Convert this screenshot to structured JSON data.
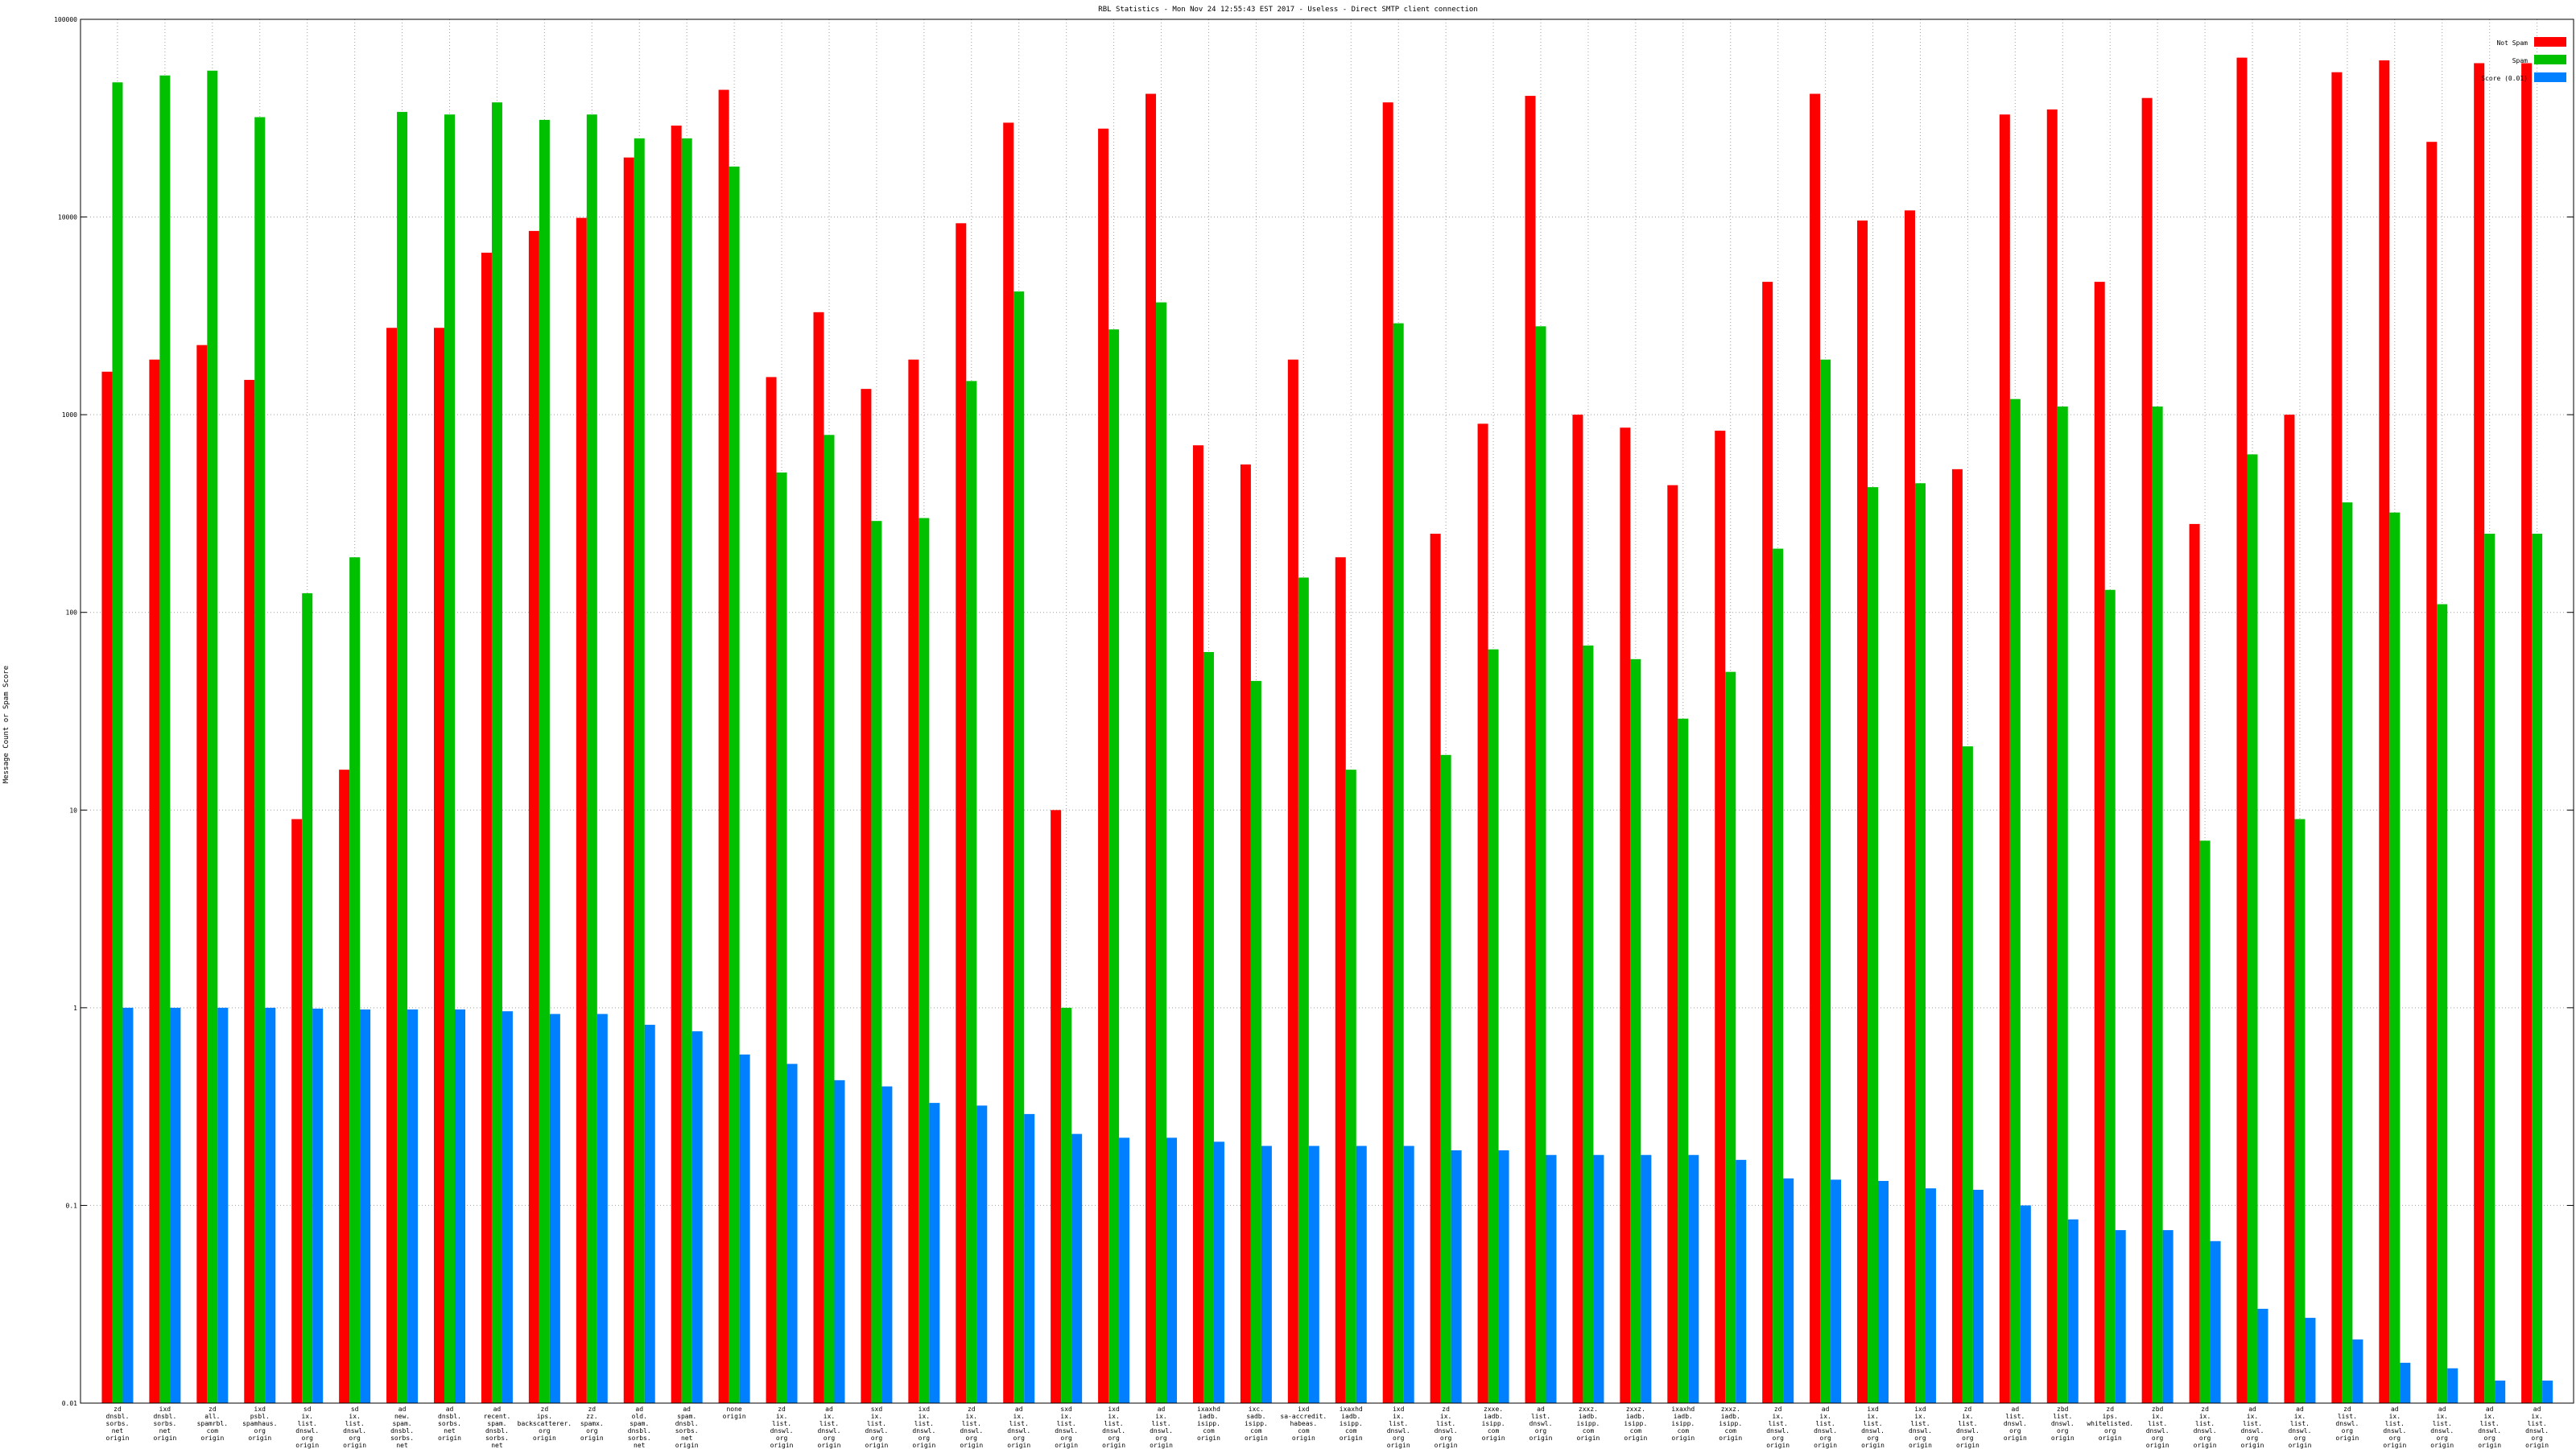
{
  "chart_data": {
    "type": "bar",
    "title": "RBL Statistics - Mon Nov 24 12:55:43 EST 2017 - Useless - Direct SMTP client connection",
    "ylabel": "Message Count or Spam Score",
    "xlabel": "",
    "yscale": "log",
    "ylim": [
      0.01,
      100000
    ],
    "yticks": [
      "0.01",
      "0.1",
      "1",
      "10",
      "100",
      "1000",
      "10000",
      "100000"
    ],
    "grid": true,
    "legend_position": "top-right",
    "colors": [
      "#ff0000",
      "#00c000",
      "#0080ff"
    ],
    "categories": [
      [
        "zd",
        "dnsbl.",
        "sorbs.",
        "net",
        "origin"
      ],
      [
        "ixd",
        "dnsbl.",
        "sorbs.",
        "net",
        "origin"
      ],
      [
        "zd",
        "all.",
        "spamrbl.",
        "com",
        "origin"
      ],
      [
        "ixd",
        "psbl.",
        "spamhaus.",
        "org",
        "origin"
      ],
      [
        "sd",
        "ix.",
        "list.",
        "dnswl.",
        "org",
        "origin"
      ],
      [
        "sd",
        "ix.",
        "list.",
        "dnswl.",
        "org",
        "origin"
      ],
      [
        "ad",
        "new.",
        "spam.",
        "dnsbl.",
        "sorbs.",
        "net",
        "origin"
      ],
      [
        "ad",
        "dnsbl.",
        "sorbs.",
        "net",
        "origin"
      ],
      [
        "ad",
        "recent.",
        "spam.",
        "dnsbl.",
        "sorbs.",
        "net",
        "origin"
      ],
      [
        "zd",
        "ips.",
        "backscatterer.",
        "org",
        "origin"
      ],
      [
        "zd",
        "zz.",
        "spamx.",
        "org",
        "origin"
      ],
      [
        "ad",
        "old.",
        "spam.",
        "dnsbl.",
        "sorbs.",
        "net",
        "origin"
      ],
      [
        "ad",
        "spam.",
        "dnsbl.",
        "sorbs.",
        "net",
        "origin"
      ],
      [
        "none",
        "origin"
      ],
      [
        "zd",
        "ix.",
        "list.",
        "dnswl.",
        "org",
        "origin"
      ],
      [
        "ad",
        "ix.",
        "list.",
        "dnswl.",
        "org",
        "origin"
      ],
      [
        "sxd",
        "ix.",
        "list.",
        "dnswl.",
        "org",
        "origin"
      ],
      [
        "ixd",
        "ix.",
        "list.",
        "dnswl.",
        "org",
        "origin"
      ],
      [
        "zd",
        "ix.",
        "list.",
        "dnswl.",
        "org",
        "origin"
      ],
      [
        "ad",
        "ix.",
        "list.",
        "dnswl.",
        "org",
        "origin"
      ],
      [
        "sxd",
        "ix.",
        "list.",
        "dnswl.",
        "org",
        "origin"
      ],
      [
        "ixd",
        "ix.",
        "list.",
        "dnswl.",
        "org",
        "origin"
      ],
      [
        "ad",
        "ix.",
        "list.",
        "dnswl.",
        "org",
        "origin"
      ],
      [
        "ixaxhd",
        "iadb.",
        "isipp.",
        "com",
        "origin"
      ],
      [
        "ixc.",
        "sadb.",
        "isipp.",
        "com",
        "origin"
      ],
      [
        "ixd",
        "sa-accredit.",
        "habeas.",
        "com",
        "origin"
      ],
      [
        "ixaxhd",
        "iadb.",
        "isipp.",
        "com",
        "origin"
      ],
      [
        "ixd",
        "ix.",
        "list.",
        "dnswl.",
        "org",
        "origin"
      ],
      [
        "zd",
        "ix.",
        "list.",
        "dnswl.",
        "org",
        "origin"
      ],
      [
        "zxxe.",
        "iadb.",
        "isipp.",
        "com",
        "origin"
      ],
      [
        "ad",
        "list.",
        "dnswl.",
        "org",
        "origin"
      ],
      [
        "zxxz.",
        "iadb.",
        "isipp.",
        "com",
        "origin"
      ],
      [
        "zxxz.",
        "iadb.",
        "isipp.",
        "com",
        "origin"
      ],
      [
        "ixaxhd",
        "iadb.",
        "isipp.",
        "com",
        "origin"
      ],
      [
        "zxxz.",
        "iadb.",
        "isipp.",
        "com",
        "origin"
      ],
      [
        "zd",
        "ix.",
        "list.",
        "dnswl.",
        "org",
        "origin"
      ],
      [
        "ad",
        "ix.",
        "list.",
        "dnswl.",
        "org",
        "origin"
      ],
      [
        "ixd",
        "ix.",
        "list.",
        "dnswl.",
        "org",
        "origin"
      ],
      [
        "ixd",
        "ix.",
        "list.",
        "dnswl.",
        "org",
        "origin"
      ],
      [
        "zd",
        "ix.",
        "list.",
        "dnswl.",
        "org",
        "origin"
      ],
      [
        "ad",
        "list.",
        "dnswl.",
        "org",
        "origin"
      ],
      [
        "zbd",
        "list.",
        "dnswl.",
        "org",
        "origin"
      ],
      [
        "zd",
        "ips.",
        "whitelisted.",
        "org",
        "origin"
      ],
      [
        "zbd",
        "ix.",
        "list.",
        "dnswl.",
        "org",
        "origin"
      ],
      [
        "zd",
        "ix.",
        "list.",
        "dnswl.",
        "org",
        "origin"
      ],
      [
        "ad",
        "ix.",
        "list.",
        "dnswl.",
        "org",
        "origin"
      ],
      [
        "ad",
        "ix.",
        "list.",
        "dnswl.",
        "org",
        "origin"
      ],
      [
        "zd",
        "list.",
        "dnswl.",
        "org",
        "origin"
      ],
      [
        "ad",
        "ix.",
        "list.",
        "dnswl.",
        "org",
        "origin"
      ],
      [
        "ad",
        "ix.",
        "list.",
        "dnswl.",
        "org",
        "origin"
      ],
      [
        "ad",
        "ix.",
        "list.",
        "dnswl.",
        "org",
        "origin"
      ],
      [
        "ad",
        "ix.",
        "list.",
        "dnswl.",
        "org",
        "origin"
      ]
    ],
    "series": [
      {
        "name": "Not Spam",
        "values": [
          1650,
          1900,
          2250,
          1500,
          9,
          16,
          2750,
          2750,
          6600,
          8500,
          9900,
          20000,
          29000,
          44000,
          1550,
          3300,
          1350,
          1900,
          9300,
          30000,
          10,
          28000,
          42000,
          700,
          560,
          1900,
          190,
          38000,
          250,
          900,
          41000,
          1000,
          860,
          440,
          830,
          4700,
          42000,
          9600,
          10800,
          530,
          33000,
          35000,
          4700,
          40000,
          280,
          64000,
          1000,
          54000,
          62000,
          24000,
          60000,
          60000
        ]
      },
      {
        "name": "Spam",
        "values": [
          48000,
          52000,
          55000,
          32000,
          125,
          190,
          34000,
          33000,
          38000,
          31000,
          33000,
          25000,
          25000,
          18000,
          510,
          790,
          290,
          300,
          1480,
          4200,
          1,
          2700,
          3700,
          63,
          45,
          150,
          16,
          2900,
          19,
          65,
          2800,
          68,
          58,
          29,
          50,
          210,
          1900,
          430,
          450,
          21,
          1200,
          1100,
          130,
          1100,
          7,
          630,
          9,
          360,
          320,
          110,
          250,
          250
        ]
      },
      {
        "name": "Score (0.01)",
        "values": [
          1.0,
          1.0,
          1.0,
          1.0,
          0.99,
          0.98,
          0.98,
          0.98,
          0.96,
          0.93,
          0.93,
          0.82,
          0.76,
          0.58,
          0.52,
          0.43,
          0.4,
          0.33,
          0.32,
          0.29,
          0.23,
          0.22,
          0.22,
          0.21,
          0.2,
          0.2,
          0.2,
          0.2,
          0.19,
          0.19,
          0.18,
          0.18,
          0.18,
          0.18,
          0.17,
          0.137,
          0.135,
          0.133,
          0.122,
          0.12,
          0.1,
          0.085,
          0.075,
          0.075,
          0.066,
          0.03,
          0.027,
          0.021,
          0.016,
          0.015,
          0.013,
          0.013
        ]
      }
    ]
  }
}
